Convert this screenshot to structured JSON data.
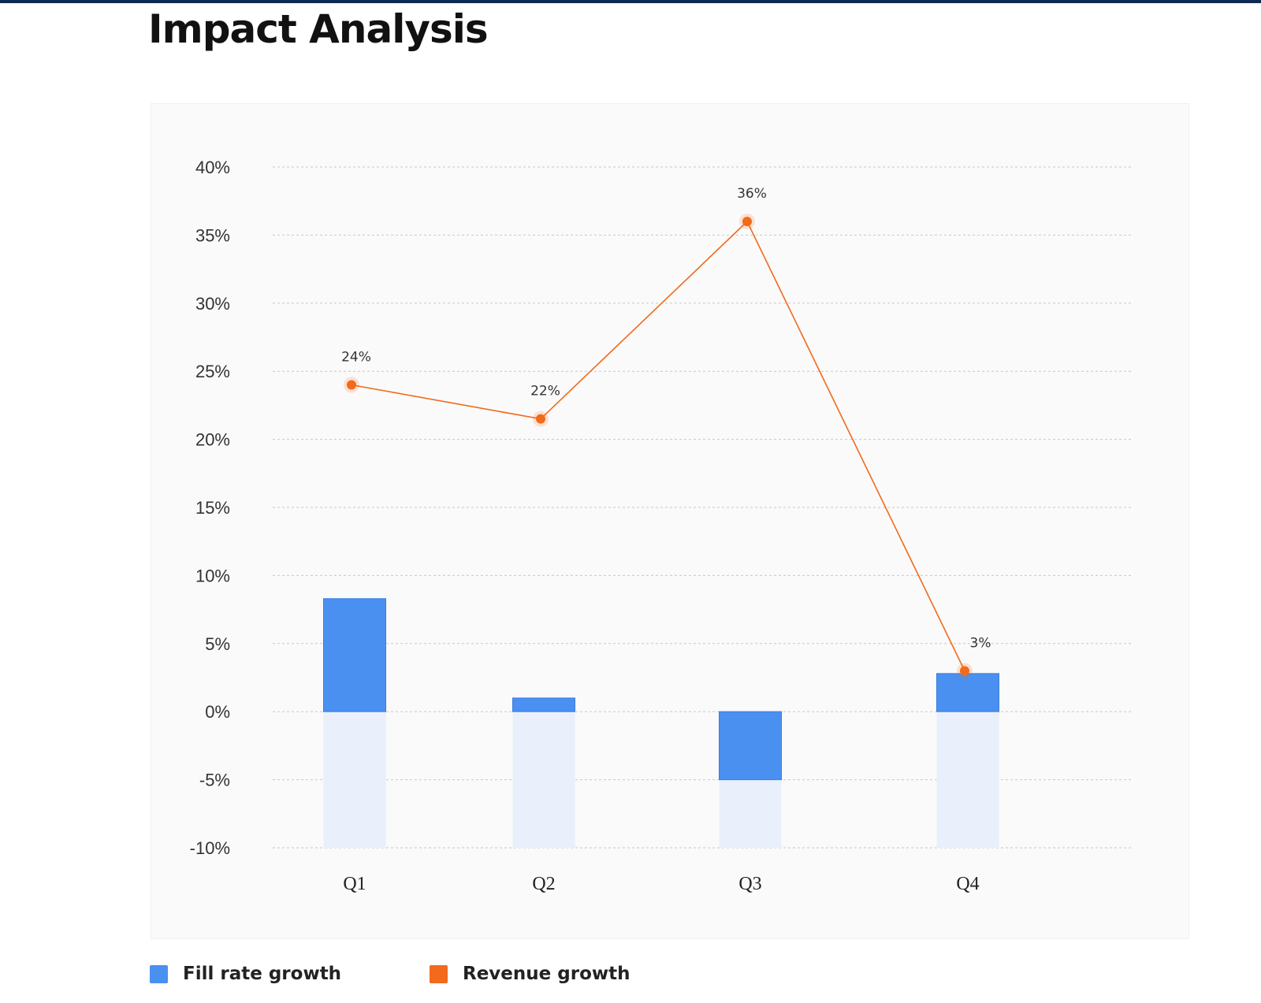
{
  "colors": {
    "top_bar": "#0d2a52",
    "fill_rate": "#4a90f0",
    "revenue": "#f26a1b",
    "bar_shadow": "#e9effb",
    "grid": "#c8c8c8",
    "text": "#333333"
  },
  "header": {
    "title": "Impact Analysis"
  },
  "legend": {
    "items": [
      {
        "label": "Fill rate growth",
        "color": "#4a90f0"
      },
      {
        "label": "Revenue growth",
        "color": "#f26a1b"
      }
    ]
  },
  "chart_data": {
    "type": "bar",
    "title": "",
    "xlabel": "",
    "ylabel": "",
    "ylim": [
      -10,
      40
    ],
    "yticks": [
      40,
      35,
      30,
      25,
      20,
      15,
      10,
      5,
      0,
      -5,
      -10
    ],
    "ytick_labels": [
      "40%",
      "35%",
      "30%",
      "25%",
      "20%",
      "15%",
      "10%",
      "5%",
      "0%",
      "-5%",
      "-10%"
    ],
    "grid": true,
    "legend_position": "bottom-left",
    "categories": [
      "Q1",
      "Q2",
      "Q3",
      "Q4"
    ],
    "series": [
      {
        "name": "Fill rate growth",
        "type": "bar",
        "values": [
          8.3,
          1.0,
          -5.0,
          2.8
        ]
      },
      {
        "name": "Revenue growth",
        "type": "line",
        "values": [
          24,
          21.5,
          36,
          3
        ],
        "labels": [
          "24%",
          "22%",
          "36%",
          "3%"
        ]
      }
    ]
  }
}
